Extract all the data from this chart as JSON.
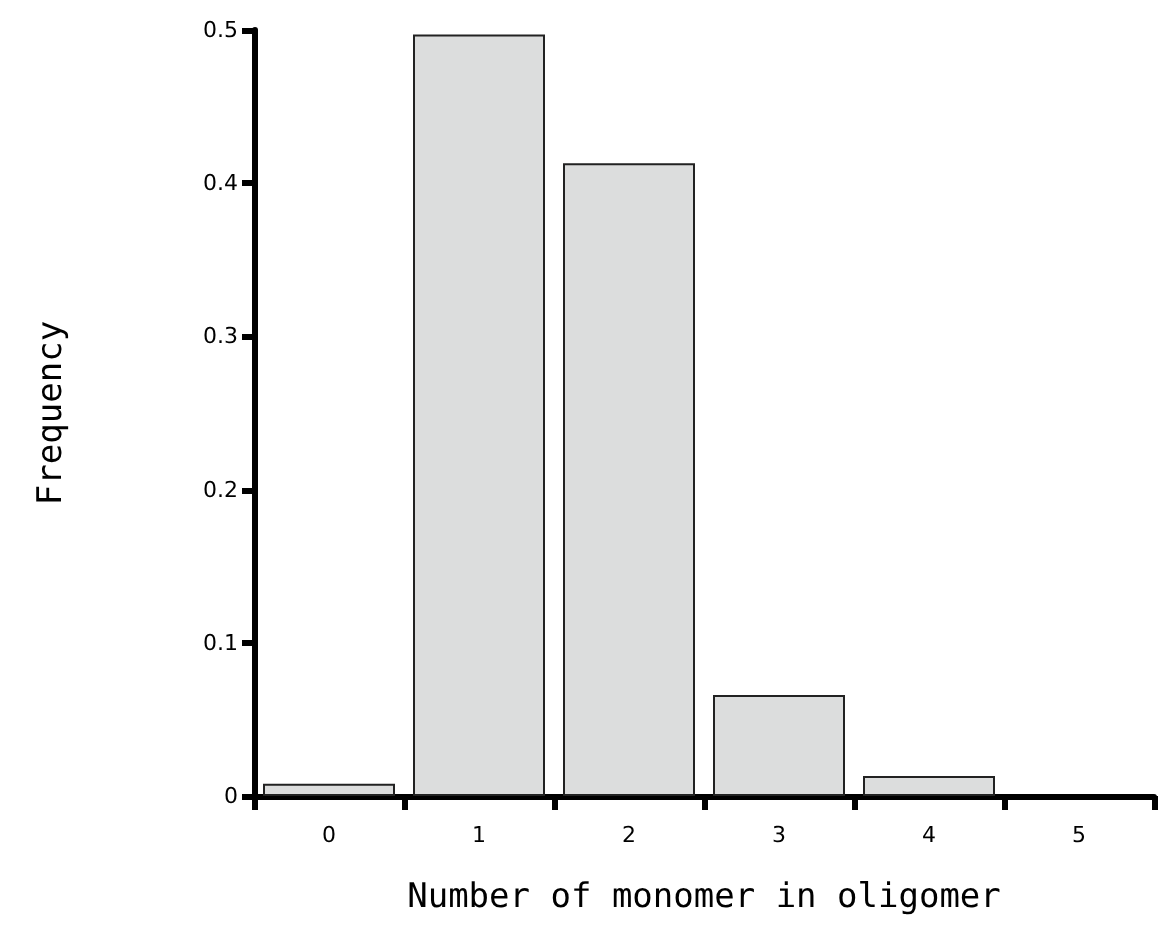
{
  "chart_data": {
    "type": "bar",
    "xlabel": "Number of monomer in oligomer",
    "ylabel": "Frequency",
    "categories": [
      "0",
      "1",
      "2",
      "3",
      "4",
      "5"
    ],
    "values": [
      0.008,
      0.497,
      0.413,
      0.066,
      0.013,
      0
    ],
    "color": "#dcdddd",
    "ylim": [
      0,
      0.5
    ],
    "yticks": [
      0,
      0.1,
      0.2,
      0.3,
      0.4,
      0.5
    ],
    "grid": false
  }
}
